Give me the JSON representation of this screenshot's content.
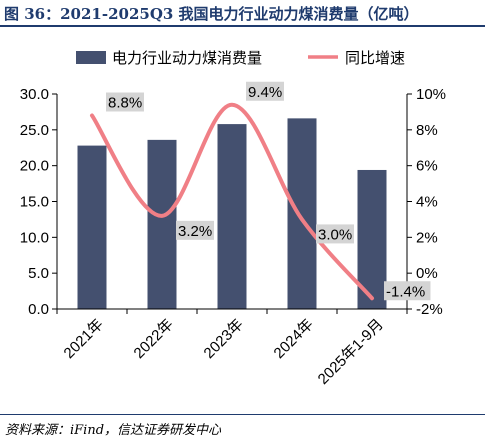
{
  "figure": {
    "title": "图 36：2021-2025Q3 我国电力行业动力煤消费量（亿吨）",
    "source": "资料来源：iFind，信达证券研发中心"
  },
  "colors": {
    "bar": "#44506f",
    "line": "#f07f86",
    "label_bg": "#d4d4d4",
    "title": "#1f3b6e"
  },
  "chart_data": {
    "type": "bar",
    "categories": [
      "2021年",
      "2022年",
      "2023年",
      "2024年",
      "2025年1-9月"
    ],
    "series": [
      {
        "name": "电力行业动力煤消费量",
        "type": "bar",
        "axis": "left",
        "values": [
          22.8,
          23.6,
          25.8,
          26.6,
          19.4
        ]
      },
      {
        "name": "同比增速",
        "type": "line",
        "axis": "right",
        "smooth": true,
        "values": [
          8.8,
          3.2,
          9.4,
          3.0,
          -1.4
        ],
        "labels": [
          "8.8%",
          "3.2%",
          "9.4%",
          "3.0%",
          "-1.4%"
        ]
      }
    ],
    "y_left": {
      "lim": [
        0,
        30
      ],
      "ticks": [
        "0.0",
        "5.0",
        "10.0",
        "15.0",
        "20.0",
        "25.0",
        "30.0"
      ]
    },
    "y_right": {
      "lim": [
        -2,
        10
      ],
      "ticks": [
        "-2%",
        "0%",
        "2%",
        "4%",
        "6%",
        "8%",
        "10%"
      ]
    },
    "grid": false,
    "legend_position": "top"
  }
}
